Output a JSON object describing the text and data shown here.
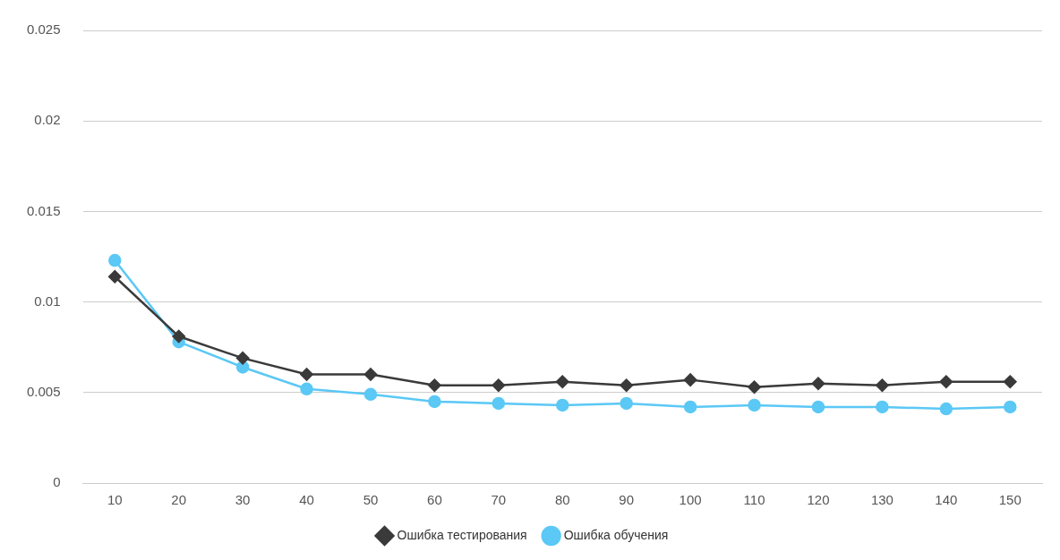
{
  "chart_data": {
    "type": "line",
    "categories": [
      "10",
      "20",
      "30",
      "40",
      "50",
      "60",
      "70",
      "80",
      "90",
      "100",
      "110",
      "120",
      "130",
      "140",
      "150"
    ],
    "series": [
      {
        "name": "Ошибка обучения",
        "color": "#5bc8f5",
        "marker": "circle",
        "values": [
          0.0123,
          0.0078,
          0.0064,
          0.0052,
          0.0049,
          0.0045,
          0.0044,
          0.0043,
          0.0044,
          0.0042,
          0.0043,
          0.0042,
          0.0042,
          0.0041,
          0.0042
        ]
      },
      {
        "name": "Ошибка тестирования",
        "color": "#3a3a3a",
        "marker": "diamond",
        "values": [
          0.0114,
          0.0081,
          0.0069,
          0.006,
          0.006,
          0.0054,
          0.0054,
          0.0056,
          0.0054,
          0.0057,
          0.0053,
          0.0055,
          0.0054,
          0.0056,
          0.0056
        ]
      }
    ],
    "ylim": [
      0,
      0.025
    ],
    "yticks": [
      0,
      0.005,
      0.01,
      0.015,
      0.02,
      0.025
    ],
    "grid": "y",
    "legend": "bottom"
  }
}
